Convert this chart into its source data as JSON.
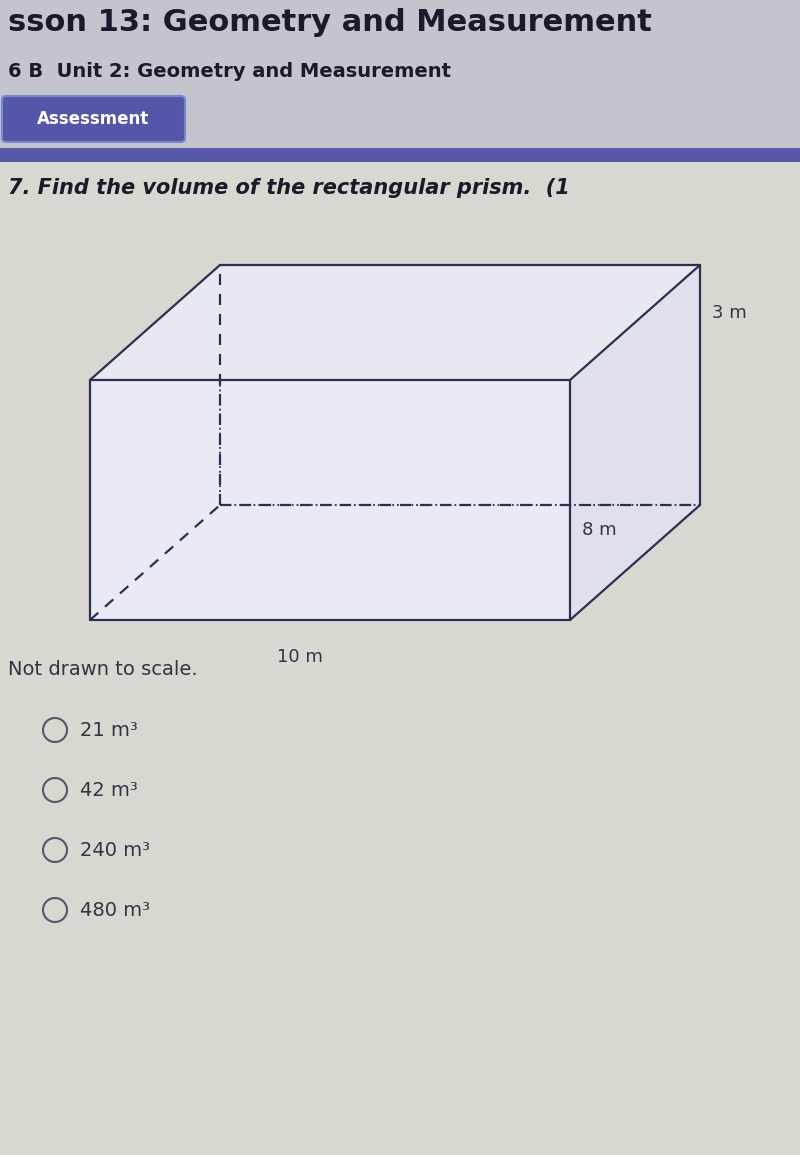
{
  "title_line1": "sson 13: Geometry and Measurement",
  "title_line2": "6 B  Unit 2: Geometry and Measurement",
  "assessment_label": "Assessment",
  "question_text": "7. Find the volume of the rectangular prism.  (1",
  "not_drawn_text": "Not drawn to scale.",
  "dim_length": "10 m",
  "dim_height": "8 m",
  "dim_depth": "3 m",
  "choices": [
    "21 m³",
    "42 m³",
    "240 m³",
    "480 m³"
  ],
  "bg_color": "#d4d4cc",
  "header_bg": "#c8c8d0",
  "prism_line_color": "#2a3050",
  "prism_face_color": "#eaeaf2",
  "assessment_bg": "#5555aa",
  "assessment_edge": "#7788cc",
  "assessment_text_color": "#ffffff",
  "purple_bar_color": "#5858a8",
  "title1_color": "#1a1a2a",
  "title2_color": "#1a1a2a",
  "question_color": "#1a1a2a",
  "body_text_color": "#333344",
  "choice_circle_color": "#555566"
}
